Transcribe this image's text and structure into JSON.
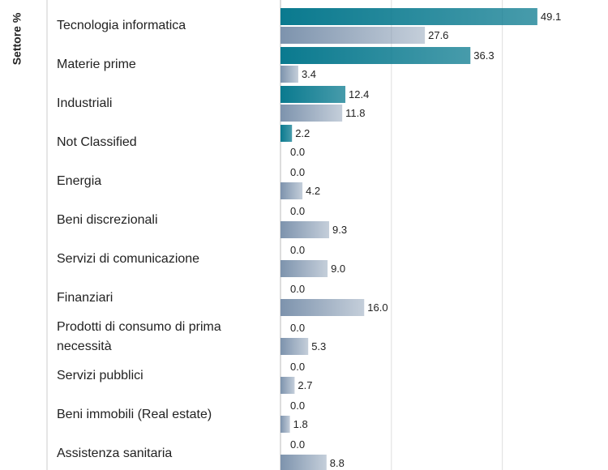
{
  "chart_data": {
    "type": "bar",
    "orientation": "horizontal",
    "ylabel": "Settore %",
    "categories": [
      "Tecnologia informatica",
      "Materie prime",
      "Industriali",
      "Not Classified",
      "Energia",
      "Beni discrezionali",
      "Servizi di comunicazione",
      "Finanziari",
      "Prodotti di consumo di prima necessità",
      "Servizi pubblici",
      "Beni immobili (Real estate)",
      "Assistenza sanitaria"
    ],
    "series": [
      {
        "color": "#0a7a8f",
        "values": [
          49.1,
          36.3,
          12.4,
          2.2,
          0,
          0,
          0,
          0,
          0,
          0,
          0,
          0
        ],
        "value_labels": [
          "49.1",
          "36.3",
          "12.4",
          "2.2",
          "0.0",
          "0.0",
          "0.0",
          "0.0",
          "0.0",
          "0.0",
          "0.0",
          "0.0"
        ]
      },
      {
        "color": "#7d93ad",
        "values": [
          27.6,
          3.4,
          11.8,
          0,
          4.2,
          9.3,
          9.0,
          16.0,
          5.3,
          2.7,
          1.8,
          8.8
        ],
        "value_labels": [
          "27.6",
          "3.4",
          "11.8",
          "0.0",
          "4.2",
          "9.3",
          "9.0",
          "16.0",
          "5.3",
          "2.7",
          "1.8",
          "8.8"
        ]
      }
    ],
    "xlim": [
      0,
      62.6
    ],
    "xticks": [
      0,
      21.2,
      42.4
    ],
    "grid": true
  }
}
